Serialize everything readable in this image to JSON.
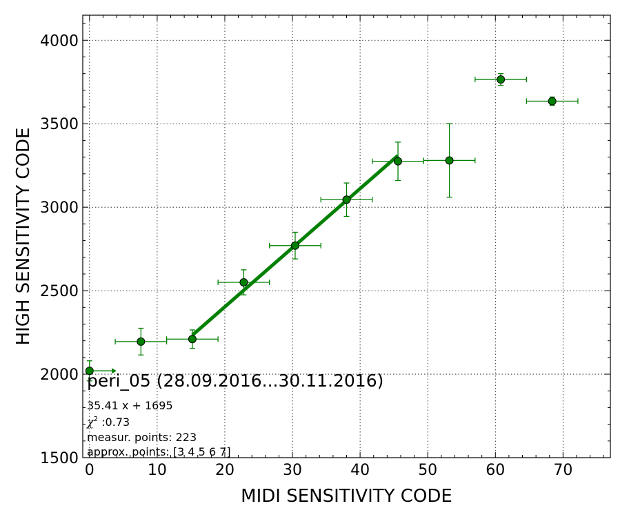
{
  "chart_data": {
    "type": "scatter",
    "xlabel": "MIDI SENSITIVITY CODE",
    "ylabel": "HIGH SENSITIVITY CODE",
    "xlim": [
      -1,
      77
    ],
    "ylim": [
      1500,
      4150
    ],
    "x_ticks": [
      0,
      10,
      20,
      30,
      40,
      50,
      60,
      70
    ],
    "y_ticks": [
      1500,
      2000,
      2500,
      3000,
      3500,
      4000
    ],
    "grid": true,
    "color": "#008000",
    "points": [
      {
        "x": 0.0,
        "y": 2020,
        "xerr": 0,
        "yerr": 60
      },
      {
        "x": 7.6,
        "y": 2195,
        "xerr": 3.8,
        "yerr": 80
      },
      {
        "x": 15.2,
        "y": 2210,
        "xerr": 3.8,
        "yerr": 55
      },
      {
        "x": 22.8,
        "y": 2550,
        "xerr": 3.8,
        "yerr": 75
      },
      {
        "x": 30.4,
        "y": 2770,
        "xerr": 3.8,
        "yerr": 80
      },
      {
        "x": 38.0,
        "y": 3045,
        "xerr": 3.8,
        "yerr": 100
      },
      {
        "x": 45.6,
        "y": 3275,
        "xerr": 3.8,
        "yerr": 115
      },
      {
        "x": 53.2,
        "y": 3280,
        "xerr": 3.8,
        "yerr": 220
      },
      {
        "x": 60.8,
        "y": 3765,
        "xerr": 3.8,
        "yerr": 35
      },
      {
        "x": 68.4,
        "y": 3635,
        "xerr": 3.8,
        "yerr": 25
      }
    ],
    "arrow": {
      "x_start": 0.0,
      "x_end": 4.0,
      "y": 2020
    },
    "fit": {
      "slope": 35.41,
      "intercept": 1695,
      "x_start": 15.2,
      "x_end": 45.6
    },
    "annotation": {
      "title": "peri_05 (28.09.2016...30.11.2016)",
      "equation": "35.41 x + 1695",
      "chi_symbol": "χ",
      "chi_power": "2",
      "chi_value": " :0.73",
      "measur_points": "measur. points: 223",
      "approx_points": "approx. points: [3 4 5 6 7]"
    }
  }
}
